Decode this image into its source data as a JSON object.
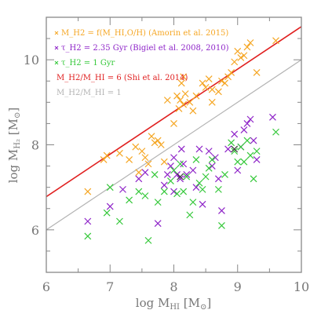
{
  "chart_data": {
    "type": "scatter",
    "xlabel": "log M_HI [M_⊙]",
    "ylabel": "log M_H2 [M_⊙]",
    "xlim": [
      6,
      10
    ],
    "ylim": [
      5,
      11
    ],
    "xticks": [
      "6",
      "7",
      "8",
      "9",
      "10"
    ],
    "yticks": [
      "6",
      "8",
      "10"
    ],
    "grid": false,
    "legend_position": "top-left",
    "legend": [
      {
        "marker_color": "#f5a623",
        "text": "M_H2 = f(M_HI,O/H) (Amorin et al. 2015)"
      },
      {
        "marker_color": "#8e24c8",
        "text": "τ_H2 = 2.35 Gyr (Bigiel et al. 2008, 2010)"
      },
      {
        "marker_color": "#35c83a",
        "text": "τ_H2 = 1 Gyr"
      },
      {
        "marker_color": "#e02020",
        "text": "M_H2/M_HI = 6 (Shi et al. 2014)"
      },
      {
        "marker_color": "#b3b3b3",
        "text": "M_H2/M_HI = 1"
      }
    ],
    "lines": [
      {
        "name": "M_H2/M_HI = 6 (Shi et al. 2014)",
        "color": "#e02020",
        "x": [
          6,
          10
        ],
        "y": [
          6.78,
          10.78
        ]
      },
      {
        "name": "M_H2/M_HI = 1",
        "color": "#b3b3b3",
        "x": [
          6,
          10
        ],
        "y": [
          6,
          10
        ]
      }
    ],
    "series": [
      {
        "name": "M_H2 = f(M_HI,O/H) (Amorin et al. 2015)",
        "color": "#f5a623",
        "points": [
          [
            6.65,
            6.9
          ],
          [
            6.9,
            7.65
          ],
          [
            6.95,
            7.75
          ],
          [
            7.15,
            7.8
          ],
          [
            7.3,
            7.65
          ],
          [
            7.4,
            7.95
          ],
          [
            7.45,
            7.35
          ],
          [
            7.5,
            7.85
          ],
          [
            7.55,
            7.7
          ],
          [
            7.6,
            7.55
          ],
          [
            7.65,
            8.2
          ],
          [
            7.7,
            8.05
          ],
          [
            7.75,
            8.1
          ],
          [
            7.8,
            8.0
          ],
          [
            7.85,
            7.6
          ],
          [
            7.9,
            9.05
          ],
          [
            8.0,
            8.5
          ],
          [
            8.05,
            9.15
          ],
          [
            8.08,
            8.85
          ],
          [
            8.1,
            9.05
          ],
          [
            8.12,
            9.45
          ],
          [
            8.15,
            9.6
          ],
          [
            8.15,
            8.95
          ],
          [
            8.18,
            9.2
          ],
          [
            8.25,
            9.0
          ],
          [
            8.3,
            8.8
          ],
          [
            8.35,
            9.15
          ],
          [
            8.45,
            9.45
          ],
          [
            8.5,
            9.35
          ],
          [
            8.55,
            9.55
          ],
          [
            8.6,
            9.3
          ],
          [
            8.6,
            9.0
          ],
          [
            8.7,
            9.25
          ],
          [
            8.75,
            9.5
          ],
          [
            8.8,
            9.45
          ],
          [
            8.85,
            9.6
          ],
          [
            8.9,
            9.7
          ],
          [
            8.95,
            9.95
          ],
          [
            9.0,
            10.2
          ],
          [
            9.05,
            10.05
          ],
          [
            9.1,
            10.1
          ],
          [
            9.15,
            10.3
          ],
          [
            9.2,
            10.4
          ],
          [
            9.6,
            10.45
          ],
          [
            9.3,
            9.7
          ]
        ]
      },
      {
        "name": "τ_H2 = 2.35 Gyr (Bigiel et al. 2008, 2010)",
        "color": "#8e24c8",
        "points": [
          [
            6.65,
            6.2
          ],
          [
            7.0,
            6.55
          ],
          [
            7.2,
            6.95
          ],
          [
            7.45,
            7.2
          ],
          [
            7.55,
            7.35
          ],
          [
            7.75,
            6.15
          ],
          [
            7.85,
            7.05
          ],
          [
            7.9,
            7.3
          ],
          [
            7.95,
            7.5
          ],
          [
            8.0,
            7.7
          ],
          [
            8.05,
            7.3
          ],
          [
            8.1,
            7.2
          ],
          [
            8.12,
            7.9
          ],
          [
            8.15,
            7.55
          ],
          [
            8.2,
            7.3
          ],
          [
            8.3,
            7.4
          ],
          [
            8.35,
            7.0
          ],
          [
            8.4,
            7.9
          ],
          [
            8.45,
            6.6
          ],
          [
            8.55,
            7.85
          ],
          [
            8.6,
            7.5
          ],
          [
            8.65,
            7.7
          ],
          [
            8.7,
            7.2
          ],
          [
            8.75,
            6.45
          ],
          [
            8.85,
            7.9
          ],
          [
            8.95,
            8.25
          ],
          [
            9.0,
            7.4
          ],
          [
            9.05,
            7.95
          ],
          [
            9.1,
            8.35
          ],
          [
            9.15,
            8.5
          ],
          [
            9.2,
            8.6
          ],
          [
            9.25,
            8.1
          ],
          [
            9.55,
            8.65
          ],
          [
            9.3,
            7.65
          ],
          [
            8.0,
            6.9
          ]
        ]
      },
      {
        "name": "τ_H2 = 1 Gyr",
        "color": "#35c83a",
        "points": [
          [
            6.65,
            5.85
          ],
          [
            6.95,
            6.4
          ],
          [
            7.0,
            7.0
          ],
          [
            7.15,
            6.2
          ],
          [
            7.3,
            6.7
          ],
          [
            7.45,
            6.9
          ],
          [
            7.55,
            6.8
          ],
          [
            7.6,
            5.75
          ],
          [
            7.7,
            7.3
          ],
          [
            7.75,
            6.65
          ],
          [
            7.85,
            6.9
          ],
          [
            7.95,
            7.15
          ],
          [
            8.0,
            7.4
          ],
          [
            8.05,
            6.85
          ],
          [
            8.1,
            7.55
          ],
          [
            8.15,
            6.9
          ],
          [
            8.2,
            7.25
          ],
          [
            8.25,
            6.35
          ],
          [
            8.3,
            6.65
          ],
          [
            8.35,
            7.65
          ],
          [
            8.4,
            7.1
          ],
          [
            8.45,
            6.95
          ],
          [
            8.5,
            7.25
          ],
          [
            8.55,
            7.45
          ],
          [
            8.6,
            7.65
          ],
          [
            8.7,
            6.95
          ],
          [
            8.75,
            6.1
          ],
          [
            8.8,
            7.3
          ],
          [
            8.9,
            8.05
          ],
          [
            8.95,
            7.85
          ],
          [
            9.0,
            7.6
          ],
          [
            9.05,
            7.95
          ],
          [
            9.1,
            7.6
          ],
          [
            9.15,
            8.1
          ],
          [
            9.2,
            7.75
          ],
          [
            9.25,
            7.2
          ],
          [
            9.6,
            8.3
          ],
          [
            9.3,
            7.85
          ]
        ]
      },
      {
        "name": "dark markers",
        "color": "#3a3a3a",
        "points": [
          [
            8.1,
            7.25
          ],
          [
            8.95,
            7.9
          ]
        ]
      }
    ]
  }
}
